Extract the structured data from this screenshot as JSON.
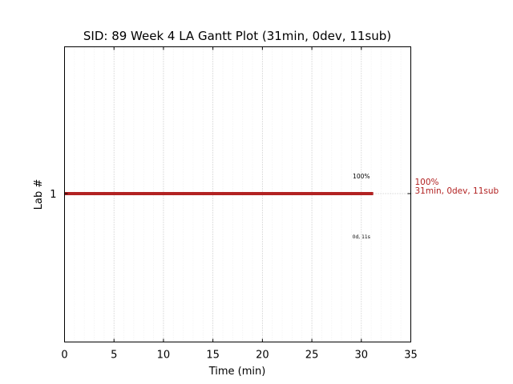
{
  "chart_data": {
    "type": "gantt",
    "title": "SID: 89 Week 4 LA Gantt Plot (31min, 0dev, 11sub)",
    "xlabel": "Time (min)",
    "ylabel": "Lab #",
    "xlim": [
      0,
      35
    ],
    "x_ticks": [
      "0",
      "5",
      "10",
      "15",
      "20",
      "25",
      "30",
      "35"
    ],
    "x_minor_step": 1,
    "grid": "vertical dotted",
    "y_categories": [
      "1"
    ],
    "bars": [
      {
        "lab": "1",
        "start": 0,
        "end": 31.2,
        "color": "#b22222",
        "percent_label": "100%",
        "percent_label_x": 30,
        "detail_label": "0d, 11s",
        "detail_label_x": 30,
        "side_label_line1": "100%",
        "side_label_line2": "31min, 0dev, 11sub"
      }
    ]
  }
}
